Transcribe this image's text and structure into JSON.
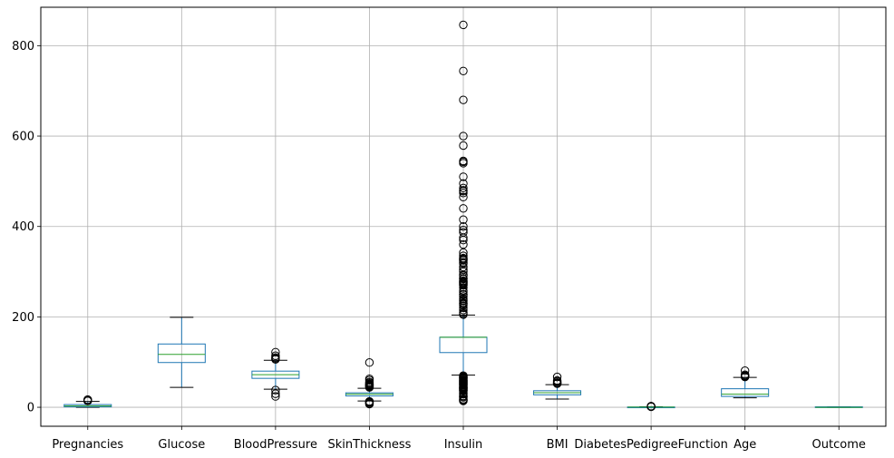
{
  "chart_data": {
    "type": "box",
    "title": "",
    "xlabel": "",
    "ylabel": "",
    "grid": true,
    "ylim": [
      -42,
      885
    ],
    "yticks": [
      0,
      200,
      400,
      600,
      800
    ],
    "categories": [
      "Pregnancies",
      "Glucose",
      "BloodPressure",
      "SkinThickness",
      "Insulin",
      "BMI",
      "DiabetesPedigreeFunction",
      "Age",
      "Outcome"
    ],
    "boxes": [
      {
        "label": "Pregnancies",
        "whislo": 0,
        "q1": 1,
        "med": 3,
        "q3": 6,
        "whishi": 13,
        "fliers": [
          14,
          15,
          17
        ]
      },
      {
        "label": "Glucose",
        "whislo": 44,
        "q1": 99,
        "med": 117,
        "q3": 140,
        "whishi": 199,
        "fliers": []
      },
      {
        "label": "BloodPressure",
        "whislo": 40,
        "q1": 64,
        "med": 72,
        "q3": 80,
        "whishi": 104,
        "fliers": [
          24,
          30,
          38,
          106,
          108,
          110,
          114,
          122
        ]
      },
      {
        "label": "SkinThickness",
        "whislo": 14,
        "q1": 25,
        "med": 29,
        "q3": 32,
        "whishi": 42,
        "fliers": [
          7,
          8,
          10,
          11,
          12,
          13,
          44,
          45,
          46,
          47,
          48,
          49,
          50,
          51,
          52,
          54,
          56,
          60,
          63,
          99
        ]
      },
      {
        "label": "Insulin",
        "whislo": 71,
        "q1": 121,
        "med": 155,
        "q3": 155,
        "whishi": 204,
        "fliers": [
          14,
          15,
          16,
          18,
          22,
          23,
          25,
          29,
          32,
          36,
          37,
          38,
          40,
          41,
          42,
          43,
          44,
          45,
          46,
          48,
          49,
          50,
          51,
          52,
          53,
          54,
          55,
          56,
          57,
          58,
          59,
          60,
          61,
          63,
          64,
          65,
          66,
          67,
          68,
          70,
          205,
          207,
          210,
          215,
          220,
          225,
          228,
          230,
          231,
          235,
          237,
          240,
          245,
          249,
          250,
          255,
          258,
          265,
          270,
          271,
          272,
          274,
          275,
          277,
          278,
          280,
          284,
          285,
          291,
          293,
          300,
          304,
          310,
          318,
          321,
          325,
          326,
          328,
          330,
          335,
          342,
          360,
          370,
          375,
          387,
          392,
          400,
          415,
          440,
          465,
          474,
          478,
          480,
          485,
          495,
          510,
          540,
          543,
          545,
          579,
          600,
          680,
          744,
          846
        ]
      },
      {
        "label": "BMI",
        "whislo": 18.2,
        "q1": 27.5,
        "med": 32.3,
        "q3": 36.6,
        "whishi": 50.0,
        "fliers": [
          52.3,
          52.9,
          53.2,
          55.0,
          57.3,
          59.4,
          67.1
        ]
      },
      {
        "label": "DiabetesPedigreeFunction",
        "whislo": 0.078,
        "q1": 0.244,
        "med": 0.3725,
        "q3": 0.626,
        "whishi": 1.191,
        "fliers": [
          1.2,
          1.4,
          1.6,
          1.8,
          2.0,
          2.2,
          2.42
        ]
      },
      {
        "label": "Age",
        "whislo": 21,
        "q1": 24,
        "med": 29,
        "q3": 41,
        "whishi": 66,
        "fliers": [
          67,
          68,
          69,
          70,
          72,
          81
        ]
      },
      {
        "label": "Outcome",
        "whislo": 0,
        "q1": 0,
        "med": 0,
        "q3": 1,
        "whishi": 1,
        "fliers": []
      }
    ],
    "colors": {
      "box": "#1f77b4",
      "median": "#2ca02c",
      "whisker": "#000000",
      "flier": "#000000",
      "grid": "#b0b0b0",
      "axes": "#000000"
    }
  }
}
